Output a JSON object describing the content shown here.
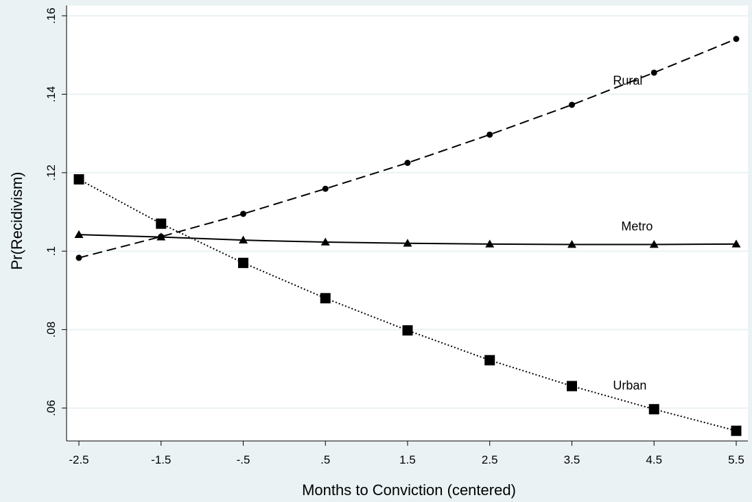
{
  "chart_data": {
    "type": "line",
    "xlabel": "Months to Conviction (centered)",
    "ylabel": "Pr(Recidivism)",
    "x": [
      -2.5,
      -1.5,
      -0.5,
      0.5,
      1.5,
      2.5,
      3.5,
      4.5,
      5.5
    ],
    "x_tick_labels": [
      "-2.5",
      "-1.5",
      "-.5",
      ".5",
      "1.5",
      "2.5",
      "3.5",
      "4.5",
      "5.5"
    ],
    "y_ticks": [
      0.06,
      0.08,
      0.1,
      0.12,
      0.14,
      0.16
    ],
    "y_tick_labels": [
      ".06",
      ".08",
      ".1",
      ".12",
      ".14",
      ".16"
    ],
    "xlim": [
      -2.5,
      5.5
    ],
    "ylim": [
      0.054,
      0.16
    ],
    "grid": "horizontal",
    "colors": {
      "background": "#eaf2f3",
      "plot_area": "#ffffff",
      "grid": "#eaf2f3",
      "series": "#000000"
    },
    "series": [
      {
        "name": "Rural",
        "marker": "circle",
        "line": "dashed",
        "values": [
          0.0983,
          0.1037,
          0.1095,
          0.1159,
          0.1225,
          0.1297,
          0.1373,
          0.1455,
          0.1541
        ]
      },
      {
        "name": "Metro",
        "marker": "triangle",
        "line": "solid",
        "values": [
          0.1042,
          0.1036,
          0.1028,
          0.1023,
          0.102,
          0.1018,
          0.1017,
          0.1017,
          0.1018
        ]
      },
      {
        "name": "Urban",
        "marker": "square",
        "line": "dotted",
        "values": [
          0.1183,
          0.107,
          0.097,
          0.088,
          0.0798,
          0.0722,
          0.0656,
          0.0597,
          0.0542
        ]
      }
    ],
    "annotations": [
      {
        "text": "Rural",
        "x": 4.0,
        "y": 0.1435
      },
      {
        "text": "Metro",
        "x": 4.1,
        "y": 0.1063
      },
      {
        "text": "Urban",
        "x": 4.0,
        "y": 0.0658
      }
    ]
  }
}
